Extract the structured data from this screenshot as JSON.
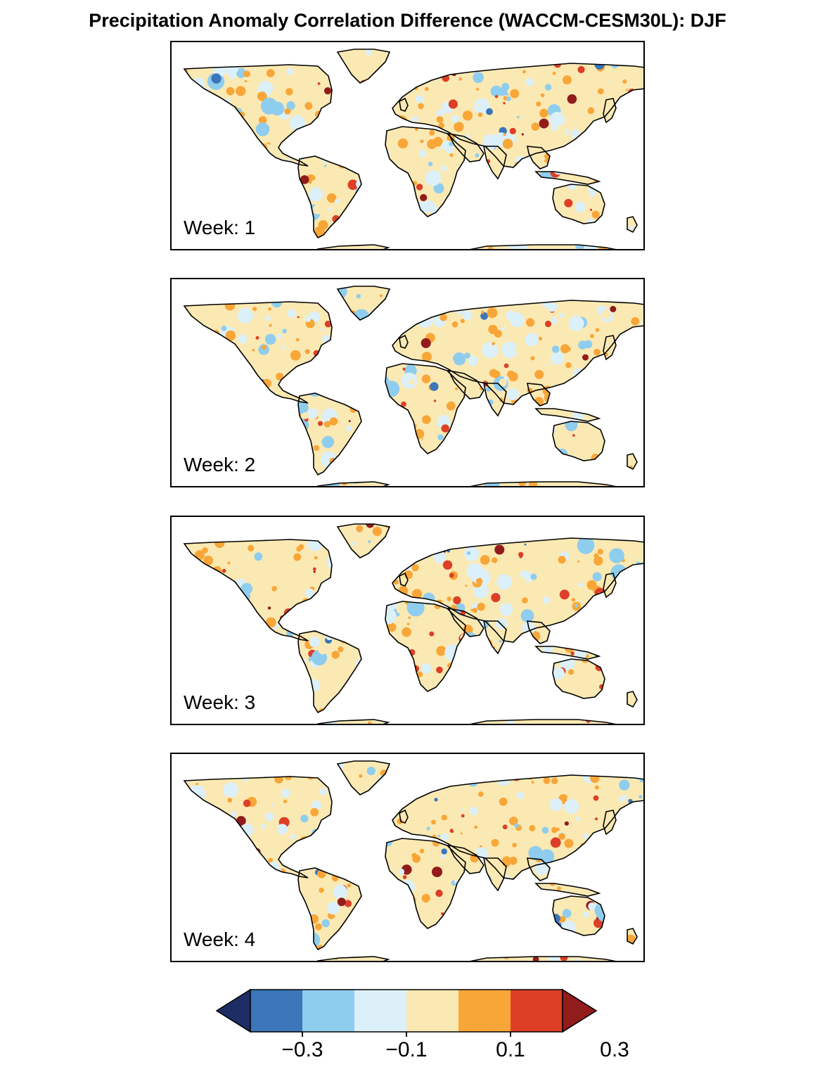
{
  "title": "Precipitation Anomaly Correlation Difference (WACCM-CESM30L): DJF",
  "panels": [
    {
      "label": "Week: 1"
    },
    {
      "label": "Week: 2"
    },
    {
      "label": "Week: 3"
    },
    {
      "label": "Week: 4"
    }
  ],
  "colorbar": {
    "colors": [
      "#1f2d66",
      "#3a76b9",
      "#8fcdee",
      "#dcf0f9",
      "#fbe9b3",
      "#f9a638",
      "#dd3f26",
      "#921b1c"
    ],
    "levels": [
      -0.3,
      -0.2,
      -0.1,
      0,
      0.1,
      0.2,
      0.3
    ],
    "tick_labels": [
      "−0.3",
      "−0.1",
      "0.1",
      "0.3"
    ],
    "tick_values": [
      -0.3,
      -0.1,
      0.1,
      0.3
    ]
  }
}
